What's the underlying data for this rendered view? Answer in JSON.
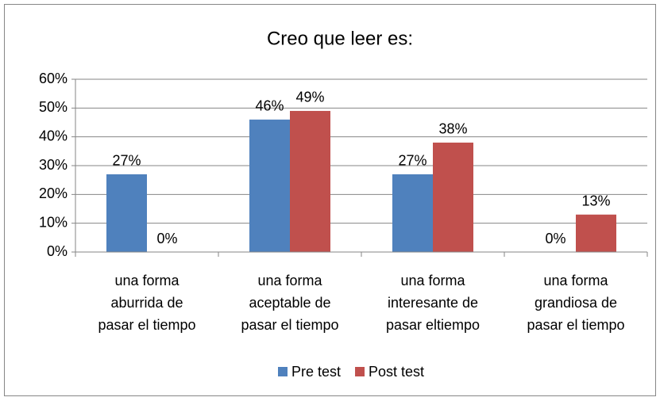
{
  "chart_data": {
    "type": "bar",
    "title": "Creo que leer es:",
    "categories": [
      "una forma\naburrida de\npasar el tiempo",
      "una forma\naceptable de\npasar el tiempo",
      "una forma\ninteresante de\npasar eltiempo",
      "una forma\ngrandiosa de\npasar el tiempo"
    ],
    "series": [
      {
        "name": "Pre test",
        "color": "#4f81bd",
        "values": [
          27,
          46,
          27,
          0
        ],
        "value_labels": [
          "27%",
          "46%",
          "27%",
          "0%"
        ]
      },
      {
        "name": "Post test",
        "color": "#c0504d",
        "values": [
          0,
          49,
          38,
          13
        ],
        "value_labels": [
          "0%",
          "49%",
          "38%",
          "13%"
        ]
      }
    ],
    "ylim": [
      0,
      60
    ],
    "yticks": [
      {
        "value": 0,
        "label": "0%"
      },
      {
        "value": 10,
        "label": "10%"
      },
      {
        "value": 20,
        "label": "20%"
      },
      {
        "value": 30,
        "label": "30%"
      },
      {
        "value": 40,
        "label": "40%"
      },
      {
        "value": 50,
        "label": "50%"
      },
      {
        "value": 60,
        "label": "60%"
      }
    ],
    "grid": true,
    "legend": "bottom"
  }
}
